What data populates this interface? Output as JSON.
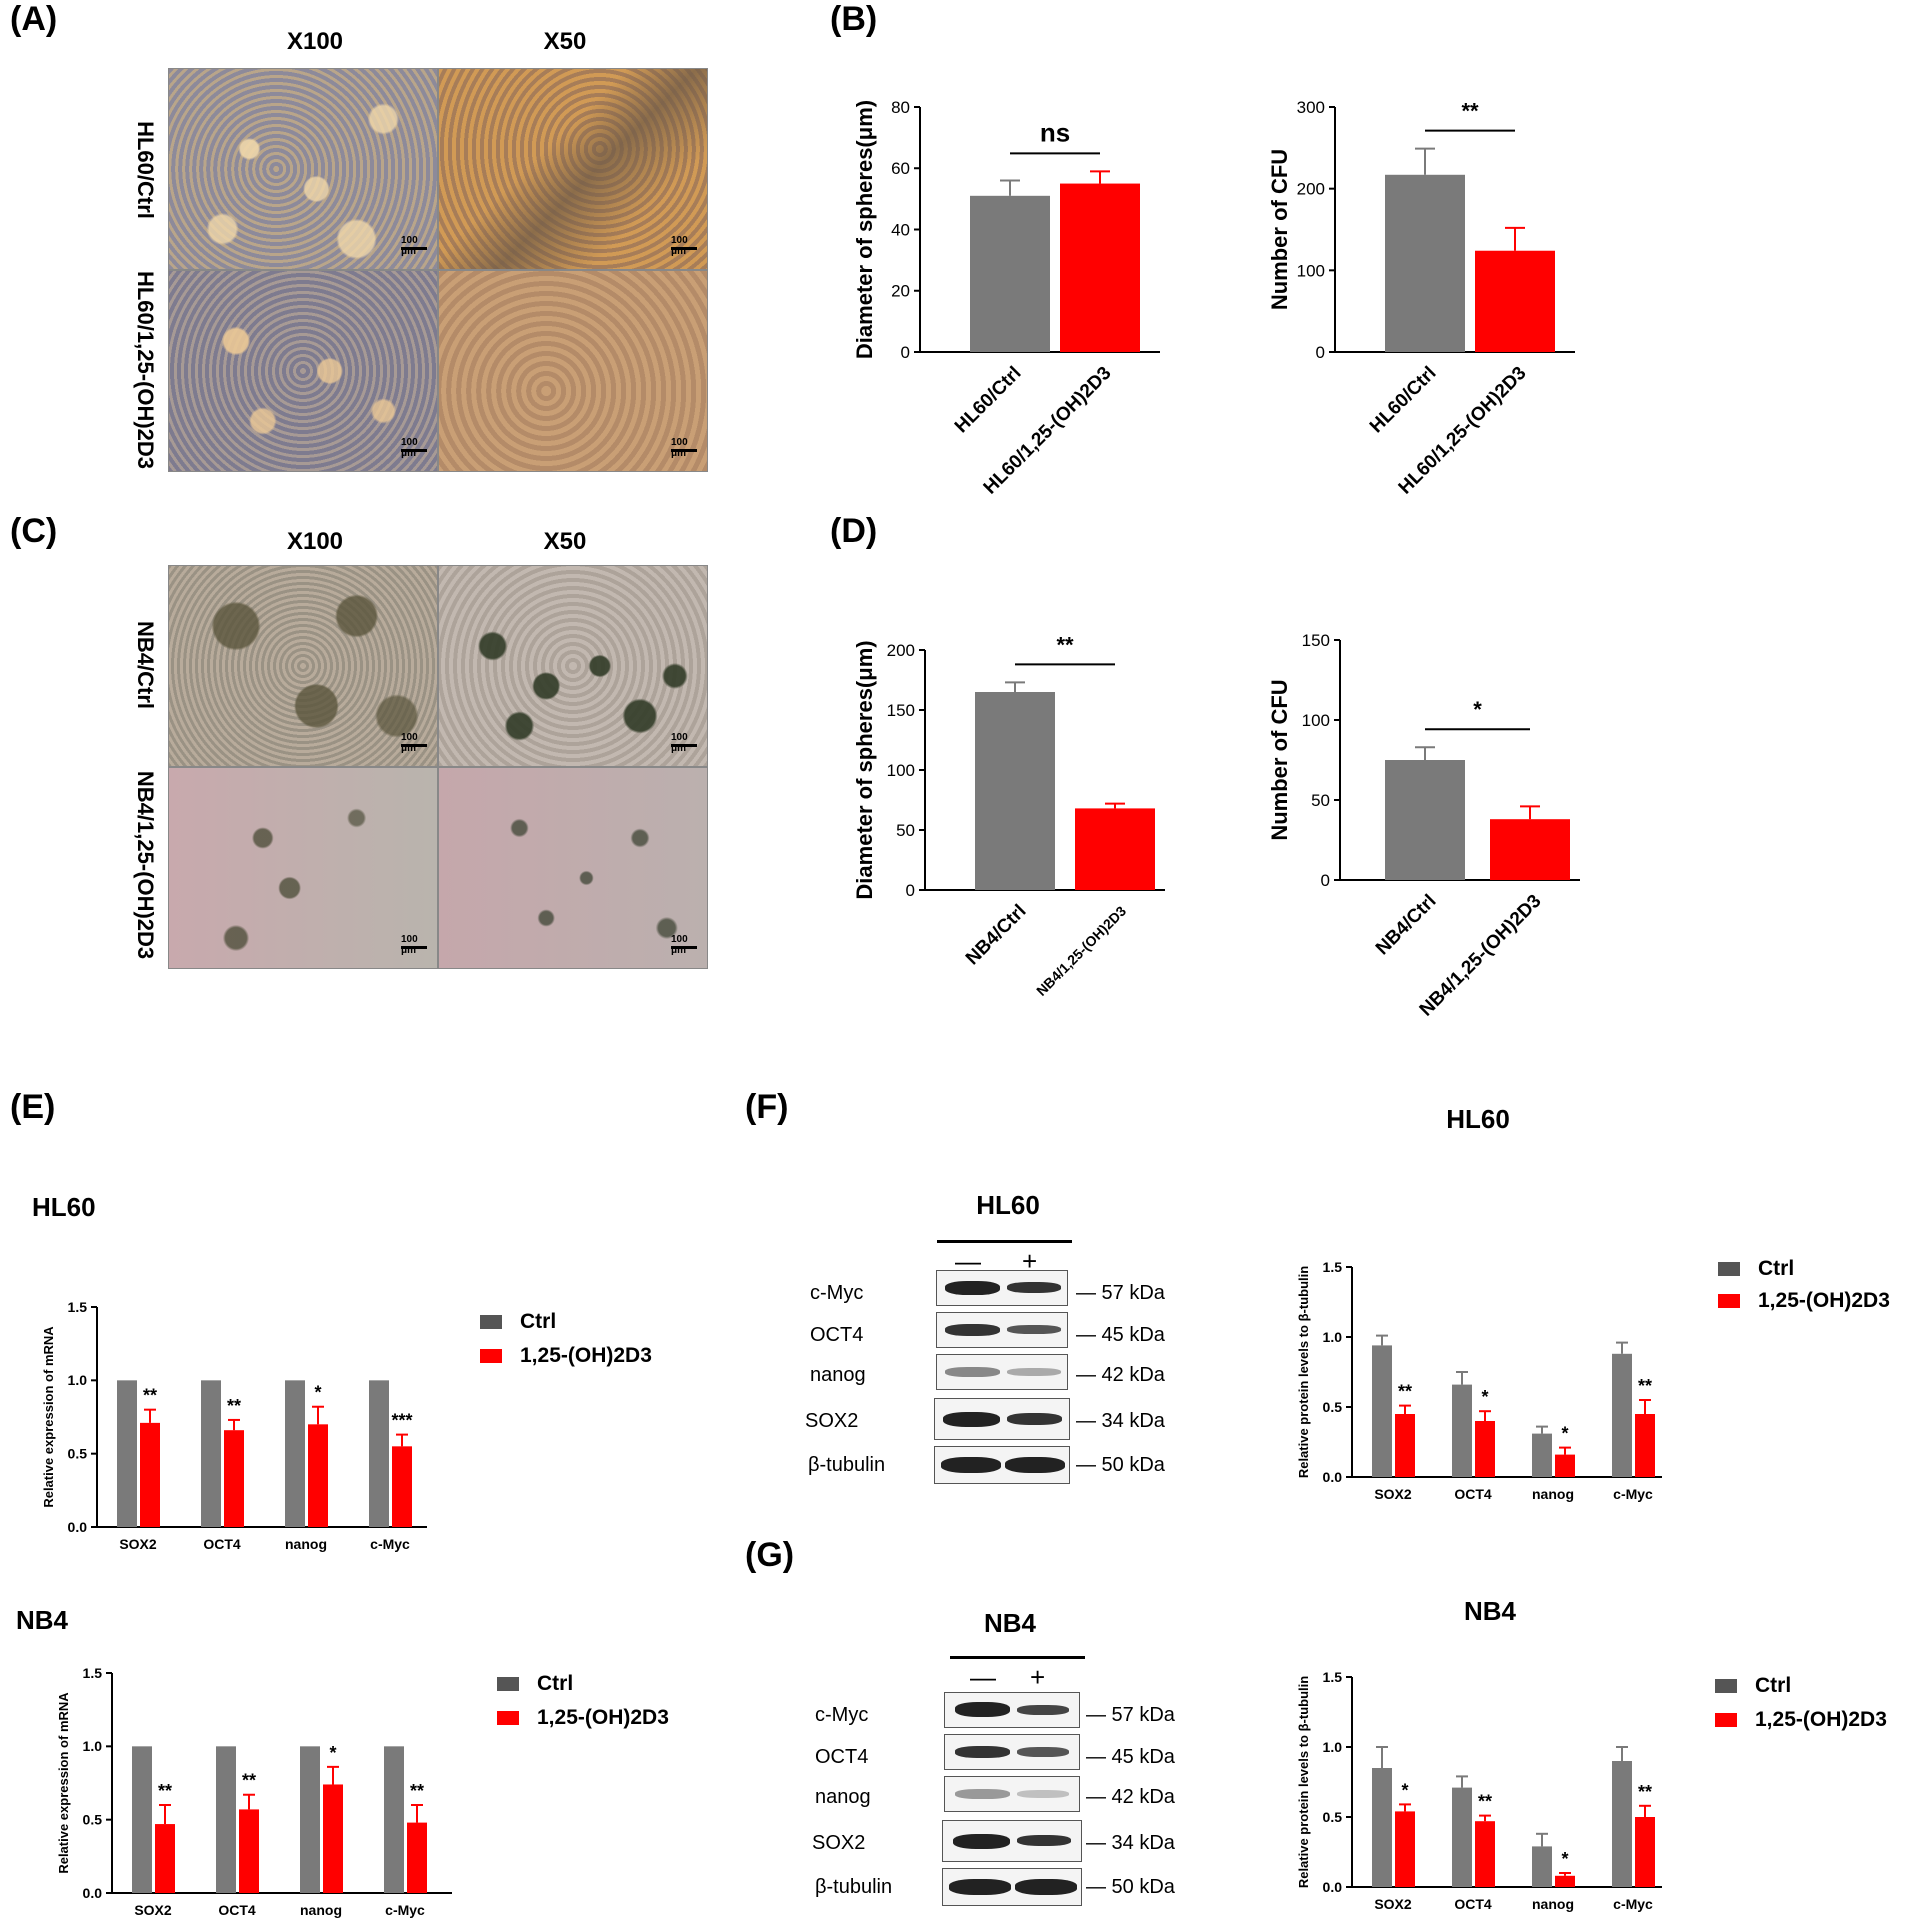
{
  "panels": {
    "A": {
      "label": "(A)",
      "col1": "X100",
      "col2": "X50",
      "row1": "HL60/Ctrl",
      "row2": "HL60/1,25-(OH)2D3",
      "scale": "100 μm"
    },
    "B": {
      "label": "(B)"
    },
    "C": {
      "label": "(C)",
      "col1": "X100",
      "col2": "X50",
      "row1": "NB4/Ctrl",
      "row2": "NB4/1,25-(OH)2D3",
      "scale": "100 μm"
    },
    "D": {
      "label": "(D)"
    },
    "E": {
      "label": "(E)",
      "title1": "HL60",
      "title2": "NB4"
    },
    "F": {
      "label": "(F)",
      "blot_title": "HL60",
      "chart_title": "HL60"
    },
    "G": {
      "label": "(G)",
      "blot_title": "NB4",
      "chart_title": "NB4"
    }
  },
  "legend": {
    "ctrl": "Ctrl",
    "treat": "1,25-(OH)2D3"
  },
  "blot": {
    "minus": "—",
    "plus": "+",
    "rows": [
      {
        "protein": "c-Myc",
        "mw": "— 57 kDa"
      },
      {
        "protein": "OCT4",
        "mw": "— 45 kDa"
      },
      {
        "protein": "nanog",
        "mw": "— 42 kDa"
      },
      {
        "protein": "SOX2",
        "mw": "— 34 kDa"
      },
      {
        "protein": "β-tubulin",
        "mw": "— 50 kDa"
      }
    ]
  },
  "colors": {
    "ctrl": "#7a7a7a",
    "treat": "#ff0000",
    "ctrl_legend": "#555555"
  },
  "chart_data": [
    {
      "id": "B1",
      "type": "bar",
      "categories": [
        "HL60/Ctrl",
        "HL60/1,25-(OH)2D3"
      ],
      "values": [
        51,
        55
      ],
      "errors": [
        5,
        4
      ],
      "ylabel": "Diameter of spheres(μm)",
      "ylim": [
        0,
        80
      ],
      "yticks": [
        0,
        20,
        40,
        60,
        80
      ],
      "sig": "ns"
    },
    {
      "id": "B2",
      "type": "bar",
      "categories": [
        "HL60/Ctrl",
        "HL60/1,25-(OH)2D3"
      ],
      "values": [
        217,
        124
      ],
      "errors": [
        32,
        28
      ],
      "ylabel": "Number of CFU",
      "ylim": [
        0,
        300
      ],
      "yticks": [
        0,
        100,
        200,
        300
      ],
      "sig": "**"
    },
    {
      "id": "D1",
      "type": "bar",
      "categories": [
        "NB4/Ctrl",
        "NB4/1,25-(OH)2D3"
      ],
      "values": [
        165,
        68
      ],
      "errors": [
        8,
        4
      ],
      "ylabel": "Diameter of spheres(μm)",
      "ylim": [
        0,
        200
      ],
      "yticks": [
        0,
        50,
        100,
        150,
        200
      ],
      "sig": "**"
    },
    {
      "id": "D2",
      "type": "bar",
      "categories": [
        "NB4/Ctrl",
        "NB4/1,25-(OH)2D3"
      ],
      "values": [
        75,
        38
      ],
      "errors": [
        8,
        8
      ],
      "ylabel": "Number of CFU",
      "ylim": [
        0,
        150
      ],
      "yticks": [
        0,
        50,
        100,
        150
      ],
      "sig": "*"
    },
    {
      "id": "E1",
      "type": "bar",
      "categories": [
        "SOX2",
        "OCT4",
        "nanog",
        "c-Myc"
      ],
      "series": [
        {
          "name": "Ctrl",
          "values": [
            1.0,
            1.0,
            1.0,
            1.0
          ],
          "errors": [
            0,
            0,
            0,
            0
          ]
        },
        {
          "name": "1,25-(OH)2D3",
          "values": [
            0.71,
            0.66,
            0.7,
            0.55
          ],
          "errors": [
            0.09,
            0.07,
            0.12,
            0.08
          ]
        }
      ],
      "ylabel": "Relative expression of mRNA",
      "ylim": [
        0,
        1.5
      ],
      "yticks": [
        0.0,
        0.5,
        1.0,
        1.5
      ],
      "sig": [
        "**",
        "**",
        "*",
        "***"
      ]
    },
    {
      "id": "E2",
      "type": "bar",
      "categories": [
        "SOX2",
        "OCT4",
        "nanog",
        "c-Myc"
      ],
      "series": [
        {
          "name": "Ctrl",
          "values": [
            1.0,
            1.0,
            1.0,
            1.0
          ],
          "errors": [
            0,
            0,
            0,
            0
          ]
        },
        {
          "name": "1,25-(OH)2D3",
          "values": [
            0.47,
            0.57,
            0.74,
            0.48
          ],
          "errors": [
            0.13,
            0.1,
            0.12,
            0.12
          ]
        }
      ],
      "ylabel": "Relative expression of mRNA",
      "ylim": [
        0,
        1.5
      ],
      "yticks": [
        0.0,
        0.5,
        1.0,
        1.5
      ],
      "sig": [
        "**",
        "**",
        "*",
        "**"
      ]
    },
    {
      "id": "F",
      "type": "bar",
      "categories": [
        "SOX2",
        "OCT4",
        "nanog",
        "c-Myc"
      ],
      "series": [
        {
          "name": "Ctrl",
          "values": [
            0.94,
            0.66,
            0.31,
            0.88
          ],
          "errors": [
            0.07,
            0.09,
            0.05,
            0.08
          ]
        },
        {
          "name": "1,25-(OH)2D3",
          "values": [
            0.45,
            0.4,
            0.16,
            0.45
          ],
          "errors": [
            0.06,
            0.07,
            0.05,
            0.1
          ]
        }
      ],
      "ylabel": "Relative protein levels to β-tubulin",
      "ylim": [
        0,
        1.5
      ],
      "yticks": [
        0.0,
        0.5,
        1.0,
        1.5
      ],
      "sig": [
        "**",
        "*",
        "*",
        "**"
      ]
    },
    {
      "id": "G",
      "type": "bar",
      "categories": [
        "SOX2",
        "OCT4",
        "nanog",
        "c-Myc"
      ],
      "series": [
        {
          "name": "Ctrl",
          "values": [
            0.85,
            0.71,
            0.29,
            0.9
          ],
          "errors": [
            0.15,
            0.08,
            0.09,
            0.1
          ]
        },
        {
          "name": "1,25-(OH)2D3",
          "values": [
            0.54,
            0.47,
            0.08,
            0.5
          ],
          "errors": [
            0.05,
            0.04,
            0.02,
            0.08
          ]
        }
      ],
      "ylabel": "Relative protein levels to β-tubulin",
      "ylim": [
        0,
        1.5
      ],
      "yticks": [
        0.0,
        0.5,
        1.0,
        1.5
      ],
      "sig": [
        "*",
        "**",
        "*",
        "**"
      ]
    }
  ]
}
